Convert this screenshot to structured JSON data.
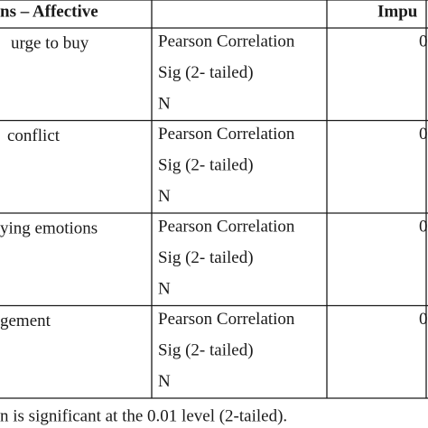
{
  "table": {
    "header": {
      "measure": "ns – Affective",
      "impulse": "Impu"
    },
    "rows": [
      {
        "label": "urge to buy",
        "stats": [
          "Pearson Correlation",
          "Sig (2- tailed)",
          "N"
        ],
        "value": "0"
      },
      {
        "label": "conflict",
        "stats": [
          "Pearson Correlation",
          "Sig (2- tailed)",
          "N"
        ],
        "value": "0"
      },
      {
        "label": "ying emotions",
        "stats": [
          "Pearson Correlation",
          "Sig (2- tailed)",
          "N"
        ],
        "value": "0"
      },
      {
        "label": "gement",
        "stats": [
          "Pearson Correlation",
          "Sig (2- tailed)",
          "N"
        ],
        "value": "0"
      }
    ],
    "footnote": "n is significant at the 0.01 level (2-tailed)."
  }
}
